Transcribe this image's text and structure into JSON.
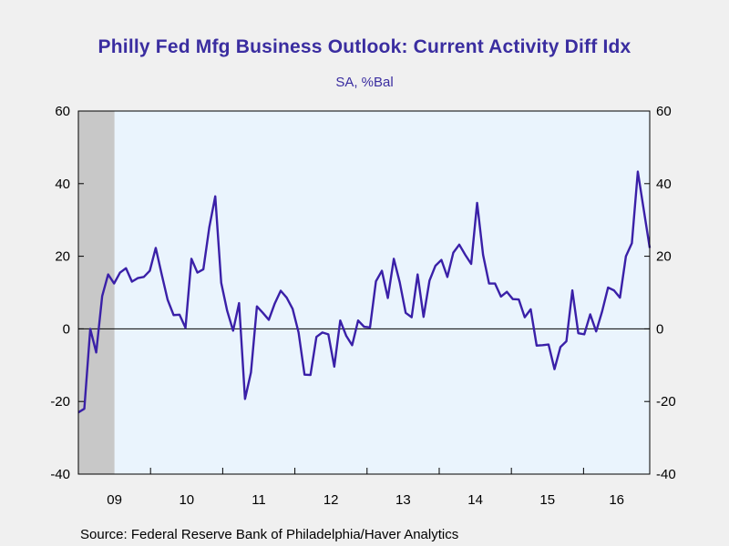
{
  "chart_data": {
    "type": "line",
    "title": "Philly Fed Mfg Business Outlook: Current Activity Diff Idx",
    "subtitle": "SA, %Bal",
    "source": "Source:  Federal Reserve Bank of Philadelphia/Haver Analytics",
    "ylim": [
      -40,
      60
    ],
    "yticks": [
      -40,
      -20,
      0,
      20,
      40,
      60
    ],
    "ytick_labels": [
      "-40",
      "-20",
      "0",
      "20",
      "40",
      "60"
    ],
    "year_labels": [
      "09",
      "10",
      "11",
      "12",
      "13",
      "14",
      "15",
      "16"
    ],
    "x_start_year": 2009,
    "x_end_year": 2016.917,
    "recession_end": 2009.5,
    "colors": {
      "line": "#3a20a8",
      "plot_bg": "#eaf4fd",
      "recession": "#c8c8c8",
      "title": "#3a2da0"
    },
    "series": [
      {
        "values": [
          -23,
          -22,
          0,
          -6.5,
          9,
          15,
          12.5,
          15.5,
          16.7,
          13,
          14,
          14.3,
          16,
          22.3,
          15,
          8,
          3.8,
          3.9,
          0.3,
          19.3,
          15.5,
          16.4,
          28,
          36.5,
          12.7,
          5,
          -0.5,
          7.1,
          -19.3,
          -12,
          6.2,
          4.4,
          2.5,
          7,
          10.5,
          8.6,
          5.5,
          -1,
          -12.6,
          -12.7,
          -2.2,
          -1,
          -1.5,
          -10.4,
          2.3,
          -1.9,
          -4.5,
          2.3,
          0.6,
          0.4,
          13.1,
          16,
          8.5,
          19.3,
          12.8,
          4.4,
          3.2,
          15,
          3.3,
          13.3,
          17.4,
          19,
          14.3,
          21,
          23.2,
          20.4,
          17.9,
          34.7,
          20.4,
          12.5,
          12.5,
          8.9,
          10.2,
          8.2,
          8.1,
          3.2,
          5.4,
          -4.6,
          -4.5,
          -4.3,
          -11.1,
          -5,
          -3.4,
          10.6,
          -1.2,
          -1.5,
          4,
          -0.7,
          4.8,
          11.4,
          10.6,
          8.6,
          20,
          23.6,
          43.3,
          32.8,
          22.3
        ]
      }
    ]
  }
}
